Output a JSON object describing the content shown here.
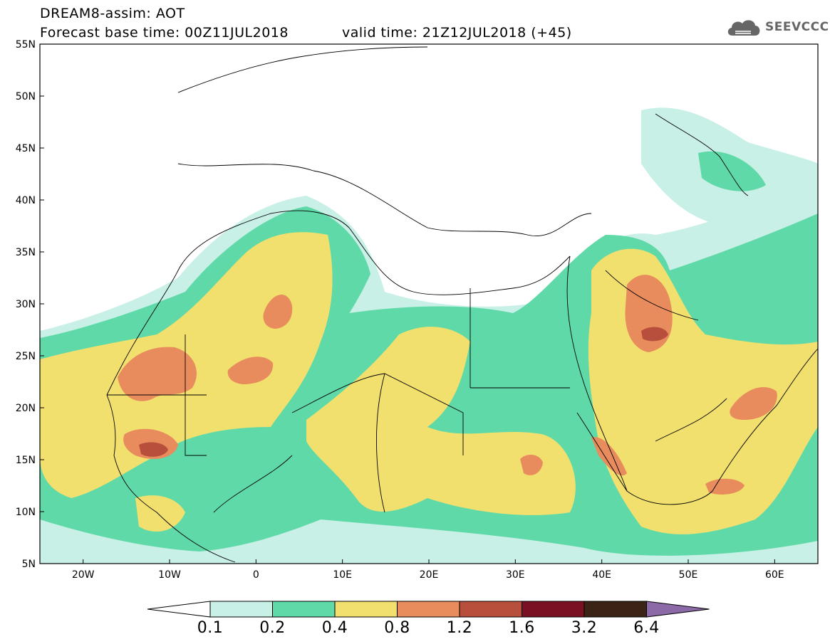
{
  "header": {
    "model_line": "DREAM8-assim: AOT",
    "base_line": "Forecast base time: 00Z11JUL2018",
    "valid_line": "valid time: 21Z12JUL2018 (+45)",
    "logo_text": "SEEVCCC",
    "logo_icon": "cloud-icon"
  },
  "map": {
    "lat_ticks": [
      "55N",
      "50N",
      "45N",
      "40N",
      "35N",
      "30N",
      "25N",
      "20N",
      "15N",
      "10N",
      "5N"
    ],
    "lon_ticks": [
      "20W",
      "10W",
      "0",
      "10E",
      "20E",
      "30E",
      "40E",
      "50E",
      "60E"
    ],
    "lat_range": [
      5,
      55
    ],
    "lon_range": [
      -25,
      65
    ]
  },
  "colorbar": {
    "levels": [
      "0.1",
      "0.2",
      "0.4",
      "0.8",
      "1.2",
      "1.6",
      "3.2",
      "6.4"
    ],
    "colors": [
      "#ffffff",
      "#c8f0e6",
      "#5fd9a8",
      "#f2e06e",
      "#e88c5e",
      "#b74f3c",
      "#7a1024",
      "#3b2415",
      "#8c6aa8"
    ]
  }
}
